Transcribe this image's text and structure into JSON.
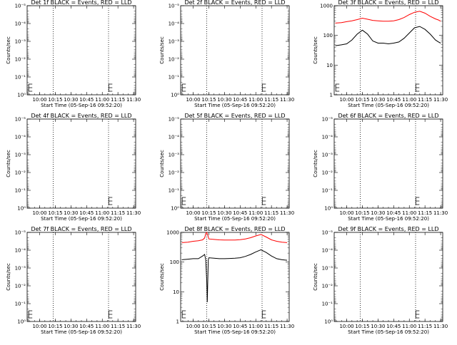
{
  "chart_data": {
    "type": "line",
    "x_tick_labels": [
      "10:00",
      "10:15",
      "10:30",
      "10:45",
      "11:00",
      "11:15",
      "11:30"
    ],
    "x_tick_values_min": [
      600,
      615,
      630,
      645,
      660,
      675,
      690
    ],
    "xlim_min": [
      588,
      692
    ],
    "xlabel": "Start Time (05-Sep-16 09:52:20)",
    "ylabel": "Counts/sec",
    "y_tick_labels_empty": [
      "10⁰",
      "10⁻¹",
      "10⁻²",
      "10⁻³",
      "10⁻⁴",
      "10⁻⁵"
    ],
    "y_tick_labels_data": [
      "1",
      "10",
      "100",
      "1000"
    ],
    "ylim_empty": [
      1,
      1e-05
    ],
    "ylim_data": [
      1,
      1000
    ],
    "dotted_line_x_min": [
      613,
      666
    ],
    "colors": {
      "events": "#000000",
      "lld": "#ff0000"
    },
    "panels": [
      {
        "title": "Det 1f BLACK = Events, RED = LLD",
        "has_data": false,
        "e_x_min": [
          589.5,
          666.2
        ]
      },
      {
        "title": "Det 2f BLACK = Events, RED = LLD",
        "has_data": false,
        "e_x_min": [
          589.5,
          666.2
        ]
      },
      {
        "title": "Det 3f BLACK = Events, RED = LLD",
        "has_data": true,
        "e_x_min": [
          589.5,
          666.2
        ],
        "series": [
          {
            "name": "Events",
            "color": "#000000",
            "x": [
              589,
              595,
              600,
              605,
              610,
              615,
              620,
              625,
              630,
              635,
              640,
              645,
              650,
              655,
              660,
              665,
              670,
              675,
              680,
              685,
              688,
              690
            ],
            "y": [
              45,
              48,
              52,
              70,
              110,
              150,
              110,
              65,
              55,
              55,
              52,
              55,
              60,
              80,
              120,
              180,
              200,
              160,
              110,
              70,
              60,
              55
            ]
          },
          {
            "name": "LLD",
            "color": "#ff0000",
            "x": [
              589,
              595,
              600,
              605,
              610,
              615,
              620,
              625,
              630,
              635,
              640,
              645,
              650,
              655,
              660,
              665,
              670,
              675,
              680,
              685,
              688,
              690
            ],
            "y": [
              260,
              270,
              290,
              310,
              340,
              380,
              350,
              320,
              310,
              300,
              300,
              310,
              340,
              400,
              500,
              600,
              650,
              560,
              440,
              360,
              330,
              300
            ]
          }
        ]
      },
      {
        "title": "Det 4f BLACK = Events, RED = LLD",
        "has_data": false,
        "e_x_min": [
          666.2
        ]
      },
      {
        "title": "Det 5f BLACK = Events, RED = LLD",
        "has_data": false,
        "e_x_min": [
          589.5,
          666.2
        ]
      },
      {
        "title": "Det 6f BLACK = Events, RED = LLD",
        "has_data": false,
        "e_x_min": [
          666.2
        ]
      },
      {
        "title": "Det 7f BLACK = Events, RED = LLD",
        "has_data": false,
        "e_x_min": [
          589.5,
          666.2
        ]
      },
      {
        "title": "Det 8f BLACK = Events, RED = LLD",
        "has_data": true,
        "e_x_min": [
          589.5,
          666.2
        ],
        "series": [
          {
            "name": "Events",
            "color": "#000000",
            "x": [
              589,
              595,
              600,
              605,
              609,
              611,
              612,
              613,
              613.5,
              614,
              614.5,
              615,
              620,
              625,
              630,
              635,
              640,
              645,
              650,
              655,
              660,
              665,
              670,
              675,
              680,
              685,
              690
            ],
            "y": [
              120,
              125,
              130,
              130,
              160,
              180,
              120,
              25,
              4.5,
              25,
              120,
              140,
              135,
              130,
              130,
              132,
              135,
              140,
              155,
              180,
              220,
              260,
              210,
              160,
              130,
              120,
              115
            ]
          },
          {
            "name": "LLD",
            "color": "#ff0000",
            "x": [
              589,
              595,
              600,
              605,
              609,
              611,
              612,
              613,
              614,
              615,
              620,
              625,
              630,
              635,
              640,
              645,
              650,
              655,
              660,
              665,
              670,
              675,
              680,
              685,
              690
            ],
            "y": [
              450,
              470,
              500,
              520,
              560,
              650,
              900,
              1000,
              800,
              600,
              580,
              560,
              550,
              550,
              555,
              570,
              600,
              660,
              760,
              850,
              700,
              560,
              500,
              470,
              450
            ]
          }
        ]
      },
      {
        "title": "Det 9f BLACK = Events, RED = LLD",
        "has_data": false,
        "e_x_min": [
          666.2
        ]
      }
    ]
  }
}
